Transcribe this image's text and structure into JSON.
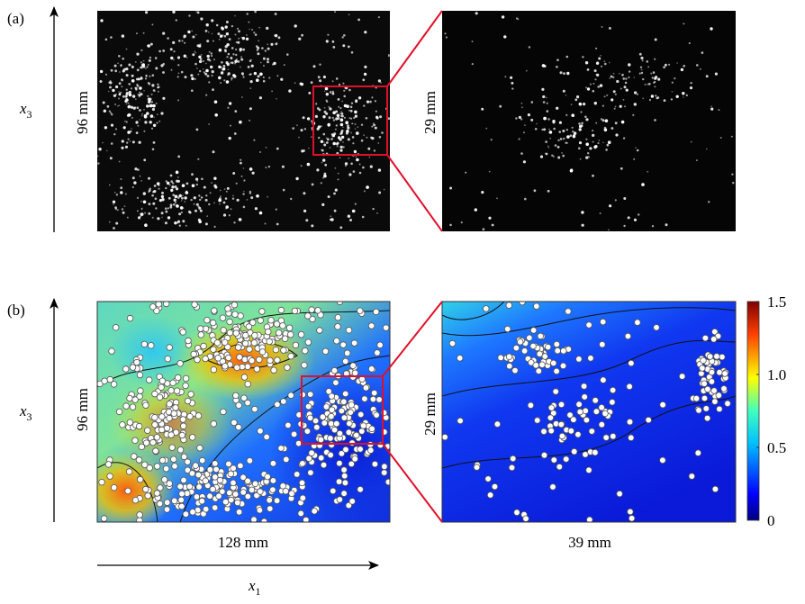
{
  "panels": [
    {
      "label": "(a)",
      "height_label": "96 mm",
      "zoom_height_label": "29 mm"
    },
    {
      "label": "(b)",
      "height_label": "96 mm",
      "zoom_height_label": "29 mm",
      "width_label": "128 mm",
      "zoom_width_label": "39 mm"
    }
  ],
  "axes": {
    "vertical": {
      "symbol": "x",
      "subscript": "3"
    },
    "horizontal": {
      "symbol": "x",
      "subscript": "1"
    }
  },
  "colorbar": {
    "lim": [
      0,
      1.5
    ],
    "ticks": [
      0,
      0.5,
      {
        "value": 1,
        "label": "1.0"
      },
      1.5
    ]
  }
}
